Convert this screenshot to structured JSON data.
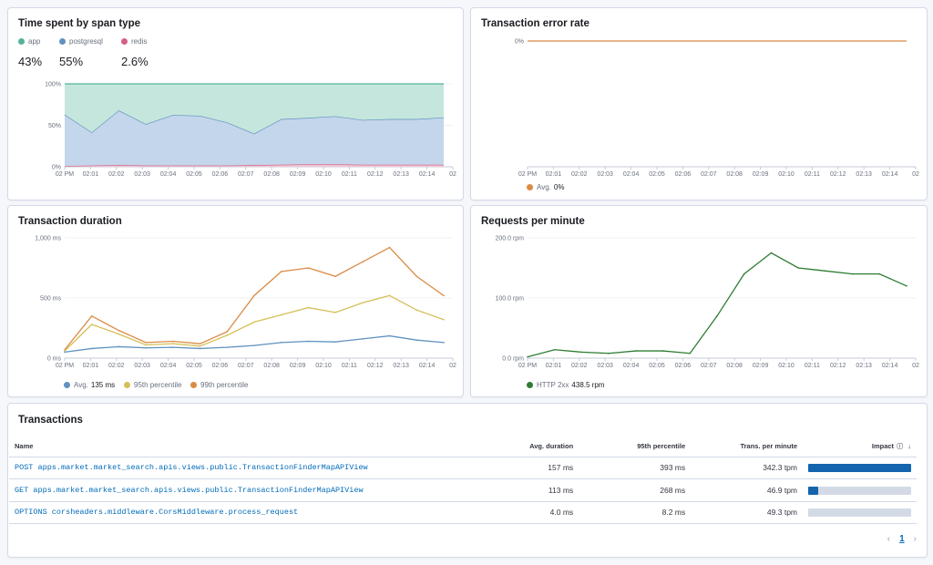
{
  "panels": {
    "span": {
      "title": "Time spent by span type",
      "legend": [
        {
          "name": "app",
          "color": "#54b399",
          "pct": "43%"
        },
        {
          "name": "postgresql",
          "color": "#6092c0",
          "pct": "55%"
        },
        {
          "name": "redis",
          "color": "#d36086",
          "pct": "2.6%"
        }
      ],
      "yticks": [
        "100%",
        "50%",
        "0%"
      ]
    },
    "error": {
      "title": "Transaction error rate",
      "ytick": "0%",
      "legend_label": "Avg.",
      "legend_value": "0%",
      "color": "#da8b45"
    },
    "duration": {
      "title": "Transaction duration",
      "yticks": [
        "1,000 ms",
        "500 ms",
        "0 ms"
      ],
      "legend": [
        {
          "name": "Avg.",
          "value": "135 ms",
          "color": "#6092c0"
        },
        {
          "name": "95th percentile",
          "value": "",
          "color": "#d6bf57"
        },
        {
          "name": "99th percentile",
          "value": "",
          "color": "#da8b45"
        }
      ]
    },
    "rpm": {
      "title": "Requests per minute",
      "yticks": [
        "200.0 rpm",
        "100.0 rpm",
        "0.0 rpm"
      ],
      "legend_label": "HTTP 2xx",
      "legend_value": "438.5 rpm",
      "color": "#2e7d32"
    }
  },
  "xticks": [
    "02 PM",
    "02:01",
    "02:02",
    "02:03",
    "02:04",
    "02:05",
    "02:06",
    "02:07",
    "02:08",
    "02:09",
    "02:10",
    "02:11",
    "02:12",
    "02:13",
    "02:14",
    "02"
  ],
  "chart_data": [
    {
      "type": "area",
      "title": "Time spent by span type",
      "x": [
        "02 PM",
        "02:01",
        "02:02",
        "02:03",
        "02:04",
        "02:05",
        "02:06",
        "02:07",
        "02:08",
        "02:09",
        "02:10",
        "02:11",
        "02:12",
        "02:13",
        "02:14"
      ],
      "ylim": [
        0,
        100
      ],
      "series": [
        {
          "name": "redis",
          "values": [
            1,
            1.5,
            2,
            1.5,
            1.5,
            1.5,
            1.5,
            2,
            2.5,
            3,
            3,
            2.5,
            2.5,
            2.5,
            2.5
          ]
        },
        {
          "name": "postgresql",
          "values": [
            62,
            40,
            66,
            50,
            61,
            60,
            52,
            38,
            55,
            56,
            58,
            54,
            55,
            55,
            57
          ]
        },
        {
          "name": "app",
          "values": [
            38,
            60,
            34,
            50,
            39,
            40,
            48,
            62,
            45,
            44,
            42,
            46,
            45,
            45,
            43
          ]
        }
      ]
    },
    {
      "type": "line",
      "title": "Transaction error rate",
      "x": [
        "02 PM",
        "02:01",
        "02:02",
        "02:03",
        "02:04",
        "02:05",
        "02:06",
        "02:07",
        "02:08",
        "02:09",
        "02:10",
        "02:11",
        "02:12",
        "02:13",
        "02:14"
      ],
      "series": [
        {
          "name": "Avg.",
          "values": [
            0,
            0,
            0,
            0,
            0,
            0,
            0,
            0,
            0,
            0,
            0,
            0,
            0,
            0,
            0
          ]
        }
      ]
    },
    {
      "type": "line",
      "title": "Transaction duration",
      "ylim": [
        0,
        1000
      ],
      "x": [
        "02 PM",
        "02:01",
        "02:02",
        "02:03",
        "02:04",
        "02:05",
        "02:06",
        "02:07",
        "02:08",
        "02:09",
        "02:10",
        "02:11",
        "02:12",
        "02:13",
        "02:14"
      ],
      "series": [
        {
          "name": "Avg.",
          "values": [
            50,
            80,
            95,
            85,
            90,
            80,
            90,
            105,
            130,
            140,
            135,
            160,
            185,
            150,
            130
          ]
        },
        {
          "name": "95th percentile",
          "values": [
            60,
            280,
            200,
            110,
            120,
            100,
            190,
            300,
            360,
            420,
            380,
            460,
            520,
            400,
            320
          ]
        },
        {
          "name": "99th percentile",
          "values": [
            70,
            350,
            230,
            130,
            140,
            120,
            220,
            520,
            720,
            750,
            680,
            800,
            920,
            680,
            520
          ]
        }
      ]
    },
    {
      "type": "line",
      "title": "Requests per minute",
      "ylim": [
        0,
        200
      ],
      "x": [
        "02 PM",
        "02:01",
        "02:02",
        "02:03",
        "02:04",
        "02:05",
        "02:06",
        "02:07",
        "02:08",
        "02:09",
        "02:10",
        "02:11",
        "02:12",
        "02:13",
        "02:14"
      ],
      "series": [
        {
          "name": "HTTP 2xx",
          "values": [
            2,
            14,
            10,
            8,
            12,
            12,
            8,
            70,
            140,
            175,
            150,
            145,
            140,
            140,
            120
          ]
        }
      ]
    }
  ],
  "transactions": {
    "title": "Transactions",
    "columns": [
      "Name",
      "Avg. duration",
      "95th percentile",
      "Trans. per minute",
      "Impact"
    ],
    "rows": [
      {
        "name": "POST apps.market.market_search.apis.views.public.TransactionFinderMapAPIView",
        "avg": "157 ms",
        "p95": "393 ms",
        "tpm": "342.3 tpm",
        "impact": 1.0
      },
      {
        "name": "GET apps.market.market_search.apis.views.public.TransactionFinderMapAPIView",
        "avg": "113 ms",
        "p95": "268 ms",
        "tpm": "46.9 tpm",
        "impact": 0.1
      },
      {
        "name": "OPTIONS corsheaders.middleware.CorsMiddleware.process_request",
        "avg": "4.0 ms",
        "p95": "8.2 ms",
        "tpm": "49.3 tpm",
        "impact": 0.0
      }
    ],
    "pagination": {
      "current": "1",
      "prev_icon": "‹",
      "next_icon": "›"
    },
    "impact_info_icon": "ⓘ",
    "sort_icon": "↓"
  }
}
